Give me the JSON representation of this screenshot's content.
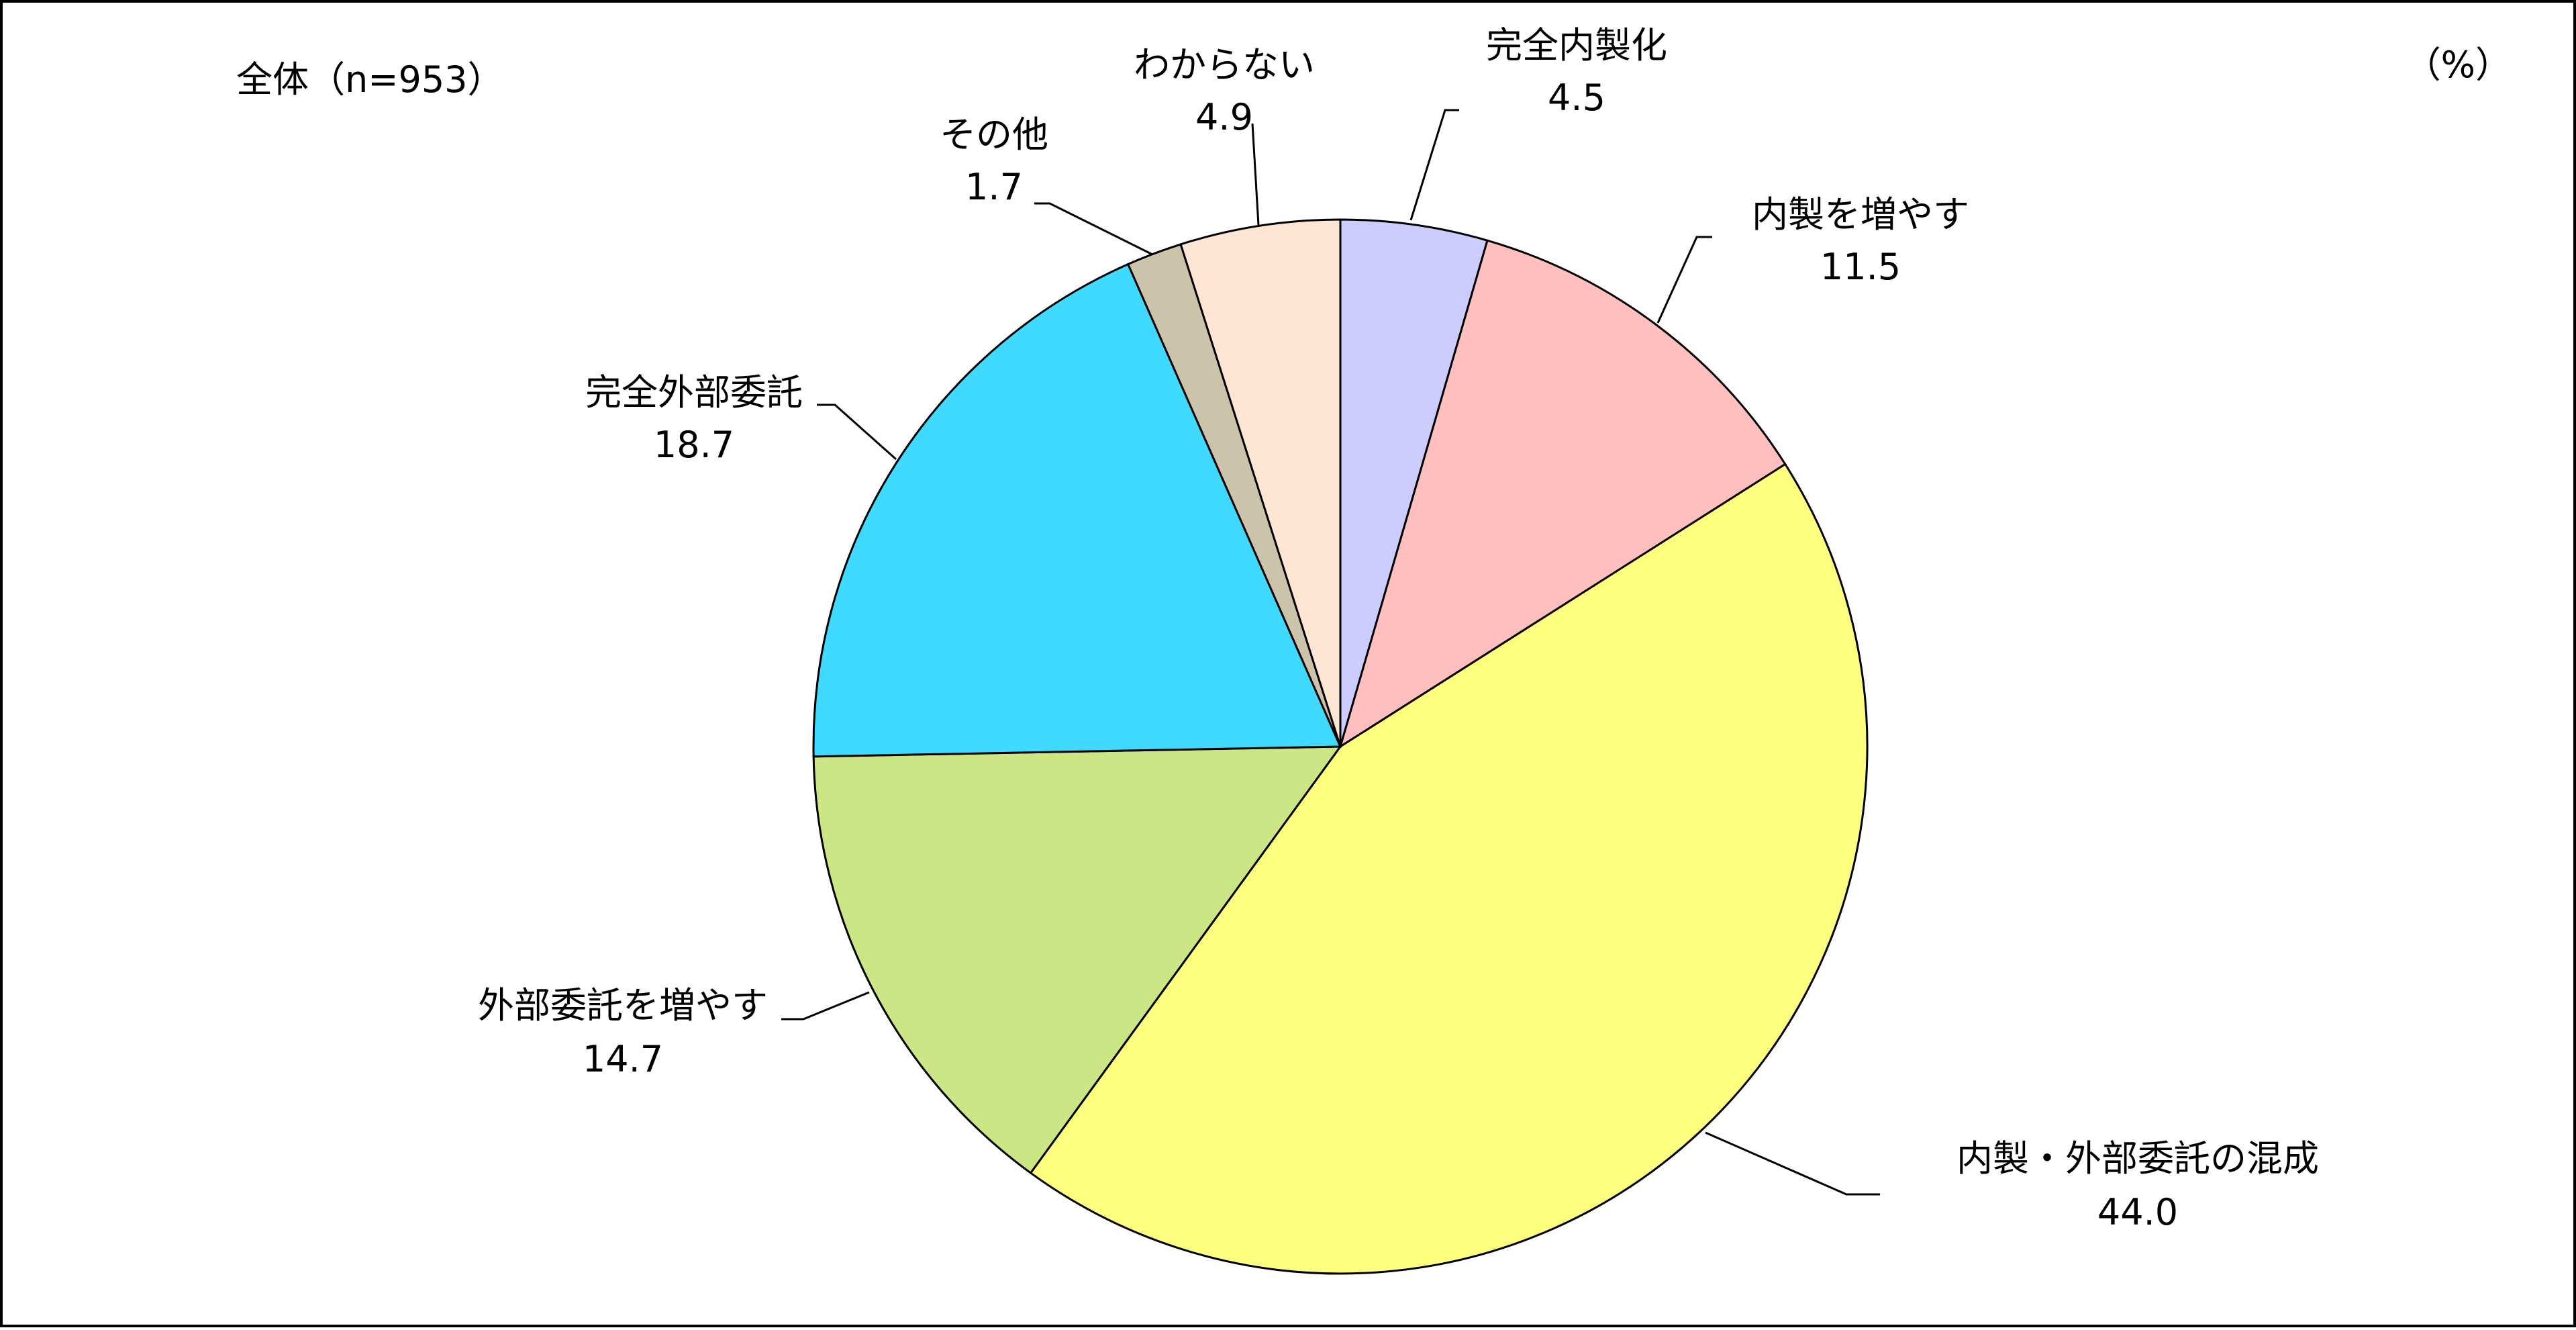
{
  "chart_data": {
    "type": "pie",
    "subtitle": "全体（n=953）",
    "unit": "（%）",
    "slices": [
      {
        "name": "完全内製化",
        "value": 4.5,
        "label": "4.5",
        "color": "#CCCCFF"
      },
      {
        "name": "内製を増やす",
        "value": 11.5,
        "label": "11.5",
        "color": "#FFBFBF"
      },
      {
        "name": "内製・外部委託の混成",
        "value": 44.0,
        "label": "44.0",
        "color": "#FFFF7F"
      },
      {
        "name": "外部委託を増やす",
        "value": 14.7,
        "label": "14.7",
        "color": "#CCE686"
      },
      {
        "name": "完全外部委託",
        "value": 18.7,
        "label": "18.7",
        "color": "#40D9FF"
      },
      {
        "name": "その他",
        "value": 1.7,
        "label": "1.7",
        "color": "#CCC4AA"
      },
      {
        "name": "わからない",
        "value": 4.9,
        "label": "4.9",
        "color": "#FFE5D4"
      }
    ]
  }
}
